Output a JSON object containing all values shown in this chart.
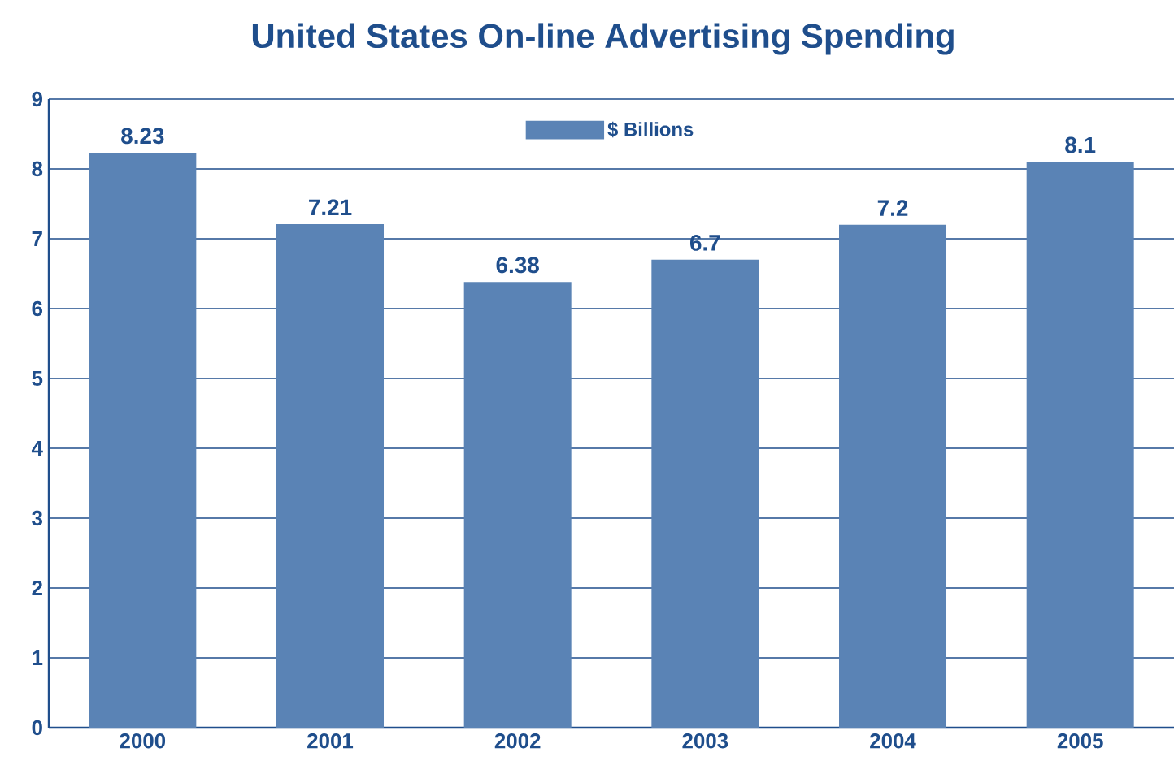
{
  "chart_data": {
    "type": "bar",
    "title": "United States On-line Advertising Spending",
    "categories": [
      "2000",
      "2001",
      "2002",
      "2003",
      "2004",
      "2005"
    ],
    "series": [
      {
        "name": "$ Billions",
        "color": "#5a83b5",
        "values": [
          8.23,
          7.21,
          6.38,
          6.7,
          7.2,
          8.1
        ]
      }
    ],
    "ylim": [
      0,
      9
    ],
    "yticks": [
      0,
      1,
      2,
      3,
      4,
      5,
      6,
      7,
      8,
      9
    ],
    "grid": "y",
    "legend": "top",
    "data_labels": true
  }
}
